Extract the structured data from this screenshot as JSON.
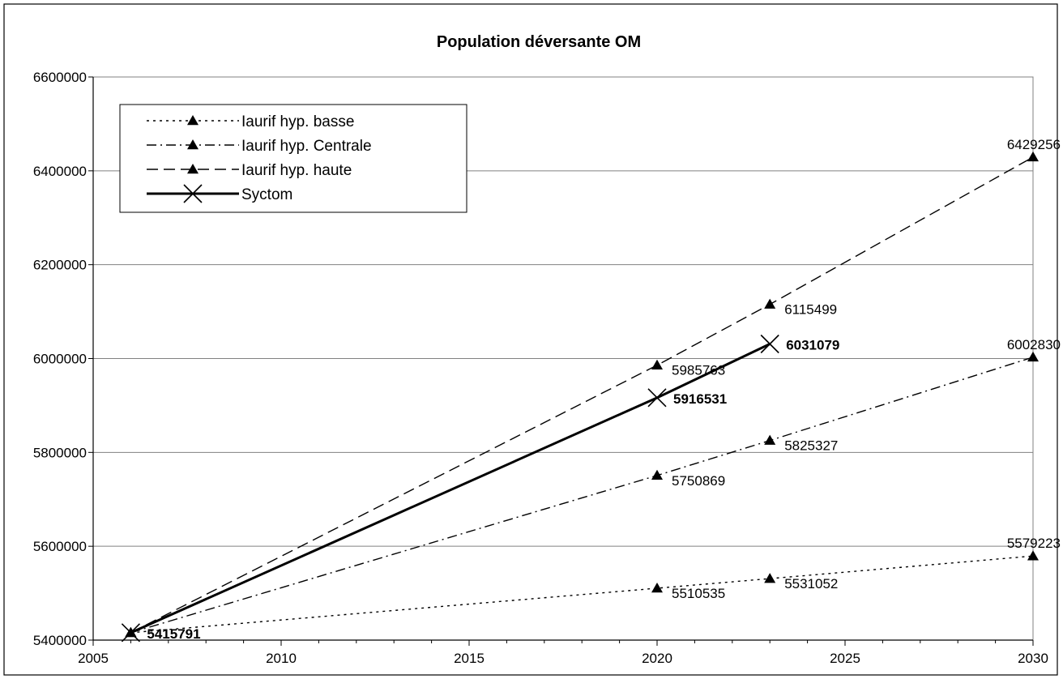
{
  "chart_data": {
    "type": "line",
    "title": "Population déversante OM",
    "xlabel": "",
    "ylabel": "",
    "xlim": [
      2005,
      2030
    ],
    "ylim": [
      5400000,
      6600000
    ],
    "x_ticks": [
      "2005",
      "2010",
      "2015",
      "2020",
      "2025",
      "2030"
    ],
    "y_ticks": [
      "5400000",
      "5600000",
      "5800000",
      "6000000",
      "6200000",
      "6400000",
      "6600000"
    ],
    "grid": "horizontal",
    "legend_position": "top-left",
    "series": [
      {
        "name": "Iaurif hyp. basse",
        "style": "dotted",
        "marker": "triangle",
        "color": "#000000",
        "x": [
          2006,
          2020,
          2023,
          2030
        ],
        "y": [
          5415791,
          5510535,
          5531052,
          5579223
        ],
        "labels": [
          "",
          "5510535",
          "5531052",
          "5579223"
        ]
      },
      {
        "name": "Iaurif hyp. Centrale",
        "style": "dashdot",
        "marker": "triangle",
        "color": "#000000",
        "x": [
          2006,
          2020,
          2023,
          2030
        ],
        "y": [
          5415791,
          5750869,
          5825327,
          6002830
        ],
        "labels": [
          "",
          "5750869",
          "5825327",
          "6002830"
        ]
      },
      {
        "name": "Iaurif hyp. haute",
        "style": "dashed",
        "marker": "triangle",
        "color": "#000000",
        "x": [
          2006,
          2020,
          2023,
          2030
        ],
        "y": [
          5415791,
          5985763,
          6115499,
          6429256
        ],
        "labels": [
          "",
          "5985763",
          "6115499",
          "6429256"
        ]
      },
      {
        "name": "Syctom",
        "style": "solid",
        "marker": "x",
        "color": "#000000",
        "x": [
          2006,
          2020,
          2023
        ],
        "y": [
          5415791,
          5916531,
          6031079
        ],
        "labels": [
          "5415791",
          "5916531",
          "6031079"
        ],
        "labels_bold": true
      }
    ]
  }
}
